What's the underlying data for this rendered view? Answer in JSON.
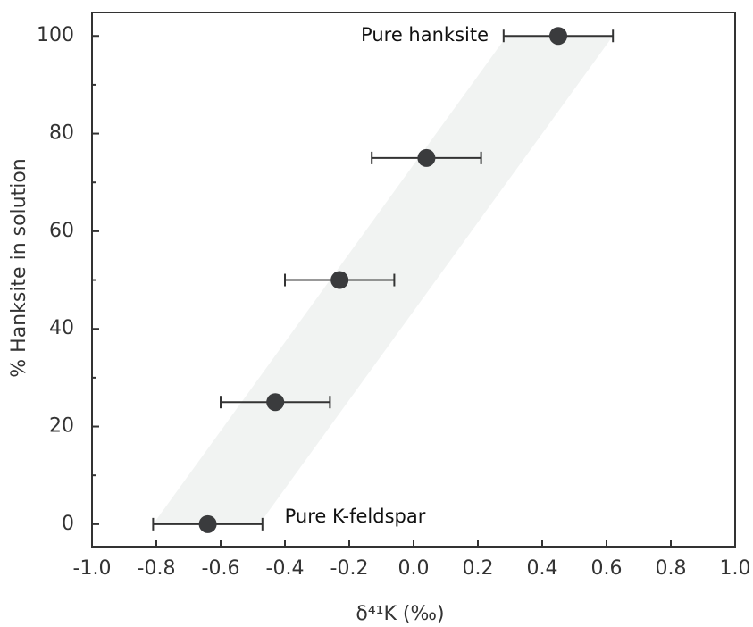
{
  "chart_data": {
    "type": "scatter",
    "xlabel": "δ⁴¹K (‰)",
    "ylabel": "% Hanksite in solution",
    "x": [
      0.45,
      0.04,
      -0.23,
      -0.43,
      -0.64
    ],
    "values": [
      100,
      75,
      50,
      25,
      0
    ],
    "xerr": [
      0.17,
      0.17,
      0.17,
      0.17,
      0.17
    ],
    "color": "#3a3b3d",
    "annotations": [
      {
        "text": "Pure hanksite",
        "x": 0.45,
        "y": 100
      },
      {
        "text": "Pure K-feldspar",
        "x": -0.64,
        "y": 0
      }
    ],
    "band": {
      "y": [
        0,
        100
      ],
      "x_low": [
        -0.81,
        0.29
      ],
      "x_high": [
        -0.48,
        0.62
      ],
      "color": "#f1f3f2"
    },
    "xlim": [
      -1,
      1
    ],
    "ylim": [
      -4.6,
      104.8
    ],
    "xticks": [
      {
        "value": -1,
        "label": "-1.0"
      },
      -0.8,
      -0.6,
      -0.4,
      -0.2,
      {
        "value": 0,
        "label": "0.0"
      },
      0.2,
      0.4,
      0.6,
      0.8,
      {
        "value": 1,
        "label": "1.0"
      }
    ],
    "yticks": [
      0,
      20,
      40,
      60,
      80,
      100
    ],
    "yminorticks": [
      10,
      30,
      50,
      70,
      90
    ]
  }
}
